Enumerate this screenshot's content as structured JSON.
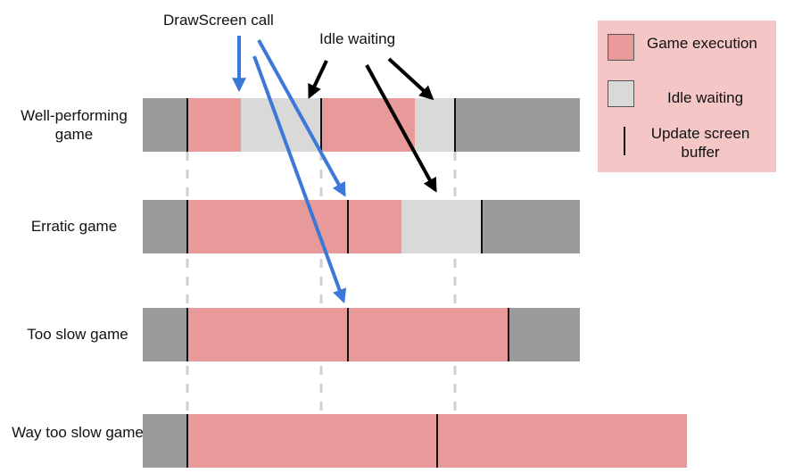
{
  "callouts": {
    "drawscreen": "DrawScreen call",
    "idle": "Idle waiting"
  },
  "rows": [
    {
      "label": "Well-performing game",
      "segments": [
        {
          "kind": "frame",
          "start": 0,
          "end": 50
        },
        {
          "kind": "exec",
          "start": 50,
          "end": 110
        },
        {
          "kind": "idle",
          "start": 110,
          "end": 200
        },
        {
          "kind": "exec",
          "start": 200,
          "end": 305
        },
        {
          "kind": "idle",
          "start": 305,
          "end": 350
        },
        {
          "kind": "frame",
          "start": 350,
          "end": 490
        }
      ],
      "updates": [
        50,
        200,
        350
      ]
    },
    {
      "label": "Erratic game",
      "segments": [
        {
          "kind": "frame",
          "start": 0,
          "end": 50
        },
        {
          "kind": "exec",
          "start": 50,
          "end": 290
        },
        {
          "kind": "idle",
          "start": 290,
          "end": 380
        },
        {
          "kind": "frame",
          "start": 380,
          "end": 490
        }
      ],
      "updates": [
        50,
        230,
        380
      ]
    },
    {
      "label": "Too slow game",
      "segments": [
        {
          "kind": "frame",
          "start": 0,
          "end": 50
        },
        {
          "kind": "exec",
          "start": 50,
          "end": 410
        },
        {
          "kind": "frame",
          "start": 410,
          "end": 490
        }
      ],
      "updates": [
        50,
        230,
        410
      ]
    },
    {
      "label": "Way too slow game",
      "segments": [
        {
          "kind": "frame",
          "start": 0,
          "end": 50
        },
        {
          "kind": "exec",
          "start": 50,
          "end": 610
        }
      ],
      "updates": [
        50,
        330
      ]
    }
  ],
  "vsync_ticks": [
    50,
    200,
    350
  ],
  "legend": {
    "exec_label": "Game execution",
    "idle_label": "Idle waiting",
    "update_label": "Update screen buffer"
  },
  "colors": {
    "frame": "#9b9b9b",
    "exec": "#e89a9a",
    "idle": "#d9d9d9",
    "legend_bg": "#f4c6c6",
    "blue_arrow": "#3b78d8",
    "black_arrow": "#000000",
    "dashed_guide": "#cfcfcf"
  }
}
